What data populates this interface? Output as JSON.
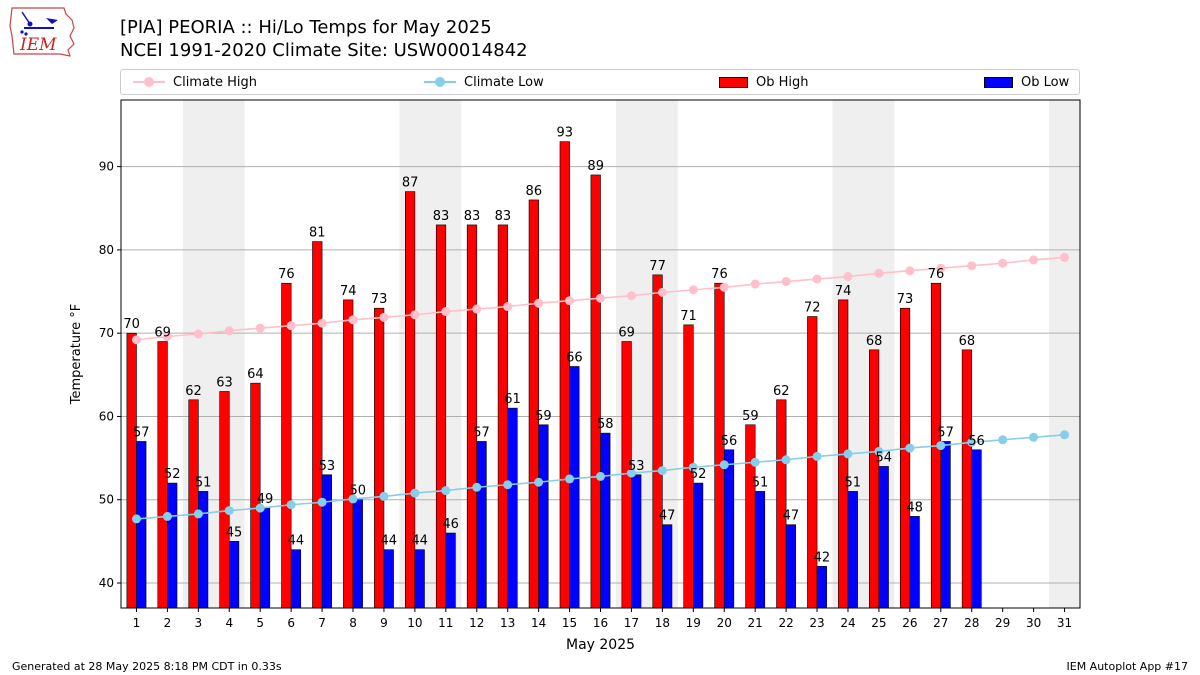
{
  "header": {
    "title_line1": "[PIA] PEORIA :: Hi/Lo Temps for May 2025",
    "title_line2": "NCEI 1991-2020 Climate Site: USW00014842",
    "logo_text": "IEM"
  },
  "legend": {
    "items": [
      {
        "label": "Climate High",
        "color": "#ffc0cb",
        "kind": "line"
      },
      {
        "label": "Climate Low",
        "color": "#87ceeb",
        "kind": "line"
      },
      {
        "label": "Ob High",
        "color": "#ff0000",
        "kind": "bar"
      },
      {
        "label": "Ob Low",
        "color": "#0000ff",
        "kind": "bar"
      }
    ]
  },
  "chart_data": {
    "type": "bar",
    "xlabel": "May 2025",
    "ylabel": "Temperature °F",
    "ylim": [
      37,
      98
    ],
    "yticks": [
      40,
      50,
      60,
      70,
      80,
      90
    ],
    "grid": "horizontal",
    "weekend_days": [
      3,
      4,
      10,
      11,
      17,
      18,
      24,
      25,
      31
    ],
    "categories": [
      1,
      2,
      3,
      4,
      5,
      6,
      7,
      8,
      9,
      10,
      11,
      12,
      13,
      14,
      15,
      16,
      17,
      18,
      19,
      20,
      21,
      22,
      23,
      24,
      25,
      26,
      27,
      28,
      29,
      30,
      31
    ],
    "series": [
      {
        "name": "Ob High",
        "kind": "bar",
        "color": "#ff0000",
        "values": [
          70,
          69,
          62,
          63,
          64,
          76,
          81,
          74,
          73,
          87,
          83,
          83,
          83,
          86,
          93,
          89,
          69,
          77,
          71,
          76,
          59,
          62,
          72,
          74,
          68,
          73,
          76,
          68,
          null,
          null,
          null
        ]
      },
      {
        "name": "Ob Low",
        "kind": "bar",
        "color": "#0000ff",
        "values": [
          57,
          52,
          51,
          45,
          49,
          44,
          53,
          50,
          44,
          44,
          46,
          57,
          61,
          59,
          66,
          58,
          53,
          47,
          52,
          56,
          51,
          47,
          42,
          51,
          54,
          48,
          57,
          56,
          null,
          null,
          null
        ]
      },
      {
        "name": "Climate High",
        "kind": "line",
        "color": "#ffc0cb",
        "values": [
          69.2,
          69.6,
          69.9,
          70.3,
          70.6,
          70.9,
          71.2,
          71.6,
          71.9,
          72.2,
          72.6,
          72.9,
          73.2,
          73.6,
          73.9,
          74.2,
          74.5,
          74.9,
          75.2,
          75.5,
          75.9,
          76.2,
          76.5,
          76.8,
          77.2,
          77.5,
          77.8,
          78.1,
          78.4,
          78.8,
          79.1
        ]
      },
      {
        "name": "Climate Low",
        "kind": "line",
        "color": "#87ceeb",
        "values": [
          47.7,
          48.0,
          48.3,
          48.7,
          49.0,
          49.4,
          49.7,
          50.1,
          50.4,
          50.8,
          51.1,
          51.5,
          51.8,
          52.1,
          52.5,
          52.8,
          53.2,
          53.5,
          53.9,
          54.2,
          54.5,
          54.8,
          55.2,
          55.5,
          55.8,
          56.2,
          56.5,
          56.9,
          57.2,
          57.5,
          57.8
        ]
      }
    ]
  },
  "footer": {
    "left": "Generated at 28 May 2025 8:18 PM CDT in 0.33s",
    "right": "IEM Autoplot App #17"
  }
}
